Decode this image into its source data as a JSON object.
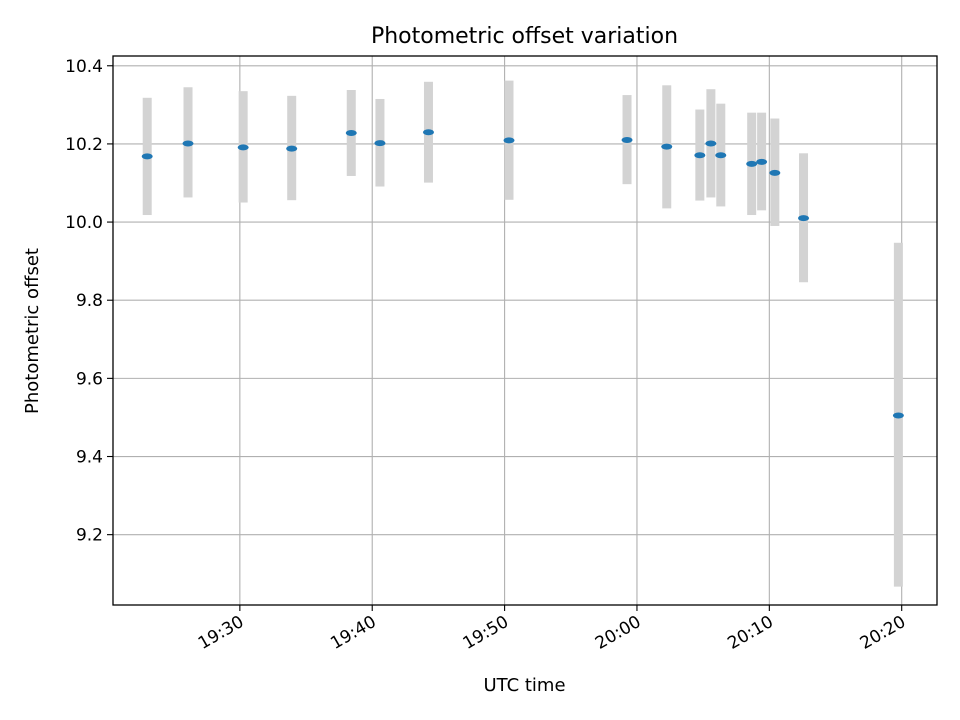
{
  "chart_data": {
    "type": "scatter",
    "title": "Photometric offset variation",
    "xlabel": "UTC time",
    "ylabel": "Photometric offset",
    "grid": true,
    "xlim": [
      "19:20:25",
      "20:22:40"
    ],
    "ylim": [
      9.02,
      10.425
    ],
    "x_ticks": [
      "19:30",
      "19:40",
      "19:50",
      "20:00",
      "20:10",
      "20:20"
    ],
    "y_ticks": [
      9.2,
      9.4,
      9.6,
      9.8,
      10.0,
      10.2,
      10.4
    ],
    "series": [
      {
        "marker_color": "#1f77b4",
        "errorbar_color": "#d3d3d3",
        "points": [
          {
            "time": "19:23:00",
            "value": 10.168,
            "low": 10.018,
            "high": 10.318
          },
          {
            "time": "19:26:05",
            "value": 10.201,
            "low": 10.063,
            "high": 10.345
          },
          {
            "time": "19:30:15",
            "value": 10.191,
            "low": 10.05,
            "high": 10.335
          },
          {
            "time": "19:33:55",
            "value": 10.188,
            "low": 10.056,
            "high": 10.323
          },
          {
            "time": "19:38:25",
            "value": 10.228,
            "low": 10.118,
            "high": 10.338
          },
          {
            "time": "19:40:35",
            "value": 10.202,
            "low": 10.091,
            "high": 10.315
          },
          {
            "time": "19:44:15",
            "value": 10.23,
            "low": 10.101,
            "high": 10.359
          },
          {
            "time": "19:50:20",
            "value": 10.209,
            "low": 10.057,
            "high": 10.362
          },
          {
            "time": "19:59:15",
            "value": 10.21,
            "low": 10.097,
            "high": 10.325
          },
          {
            "time": "20:02:15",
            "value": 10.193,
            "low": 10.035,
            "high": 10.35
          },
          {
            "time": "20:04:45",
            "value": 10.171,
            "low": 10.055,
            "high": 10.288
          },
          {
            "time": "20:05:35",
            "value": 10.201,
            "low": 10.063,
            "high": 10.34
          },
          {
            "time": "20:06:20",
            "value": 10.171,
            "low": 10.04,
            "high": 10.303
          },
          {
            "time": "20:08:40",
            "value": 10.149,
            "low": 10.018,
            "high": 10.28
          },
          {
            "time": "20:09:25",
            "value": 10.154,
            "low": 10.03,
            "high": 10.28
          },
          {
            "time": "20:10:25",
            "value": 10.126,
            "low": 9.99,
            "high": 10.265
          },
          {
            "time": "20:12:35",
            "value": 10.01,
            "low": 9.846,
            "high": 10.176
          },
          {
            "time": "20:19:45",
            "value": 9.505,
            "low": 9.067,
            "high": 9.947
          }
        ]
      }
    ]
  }
}
